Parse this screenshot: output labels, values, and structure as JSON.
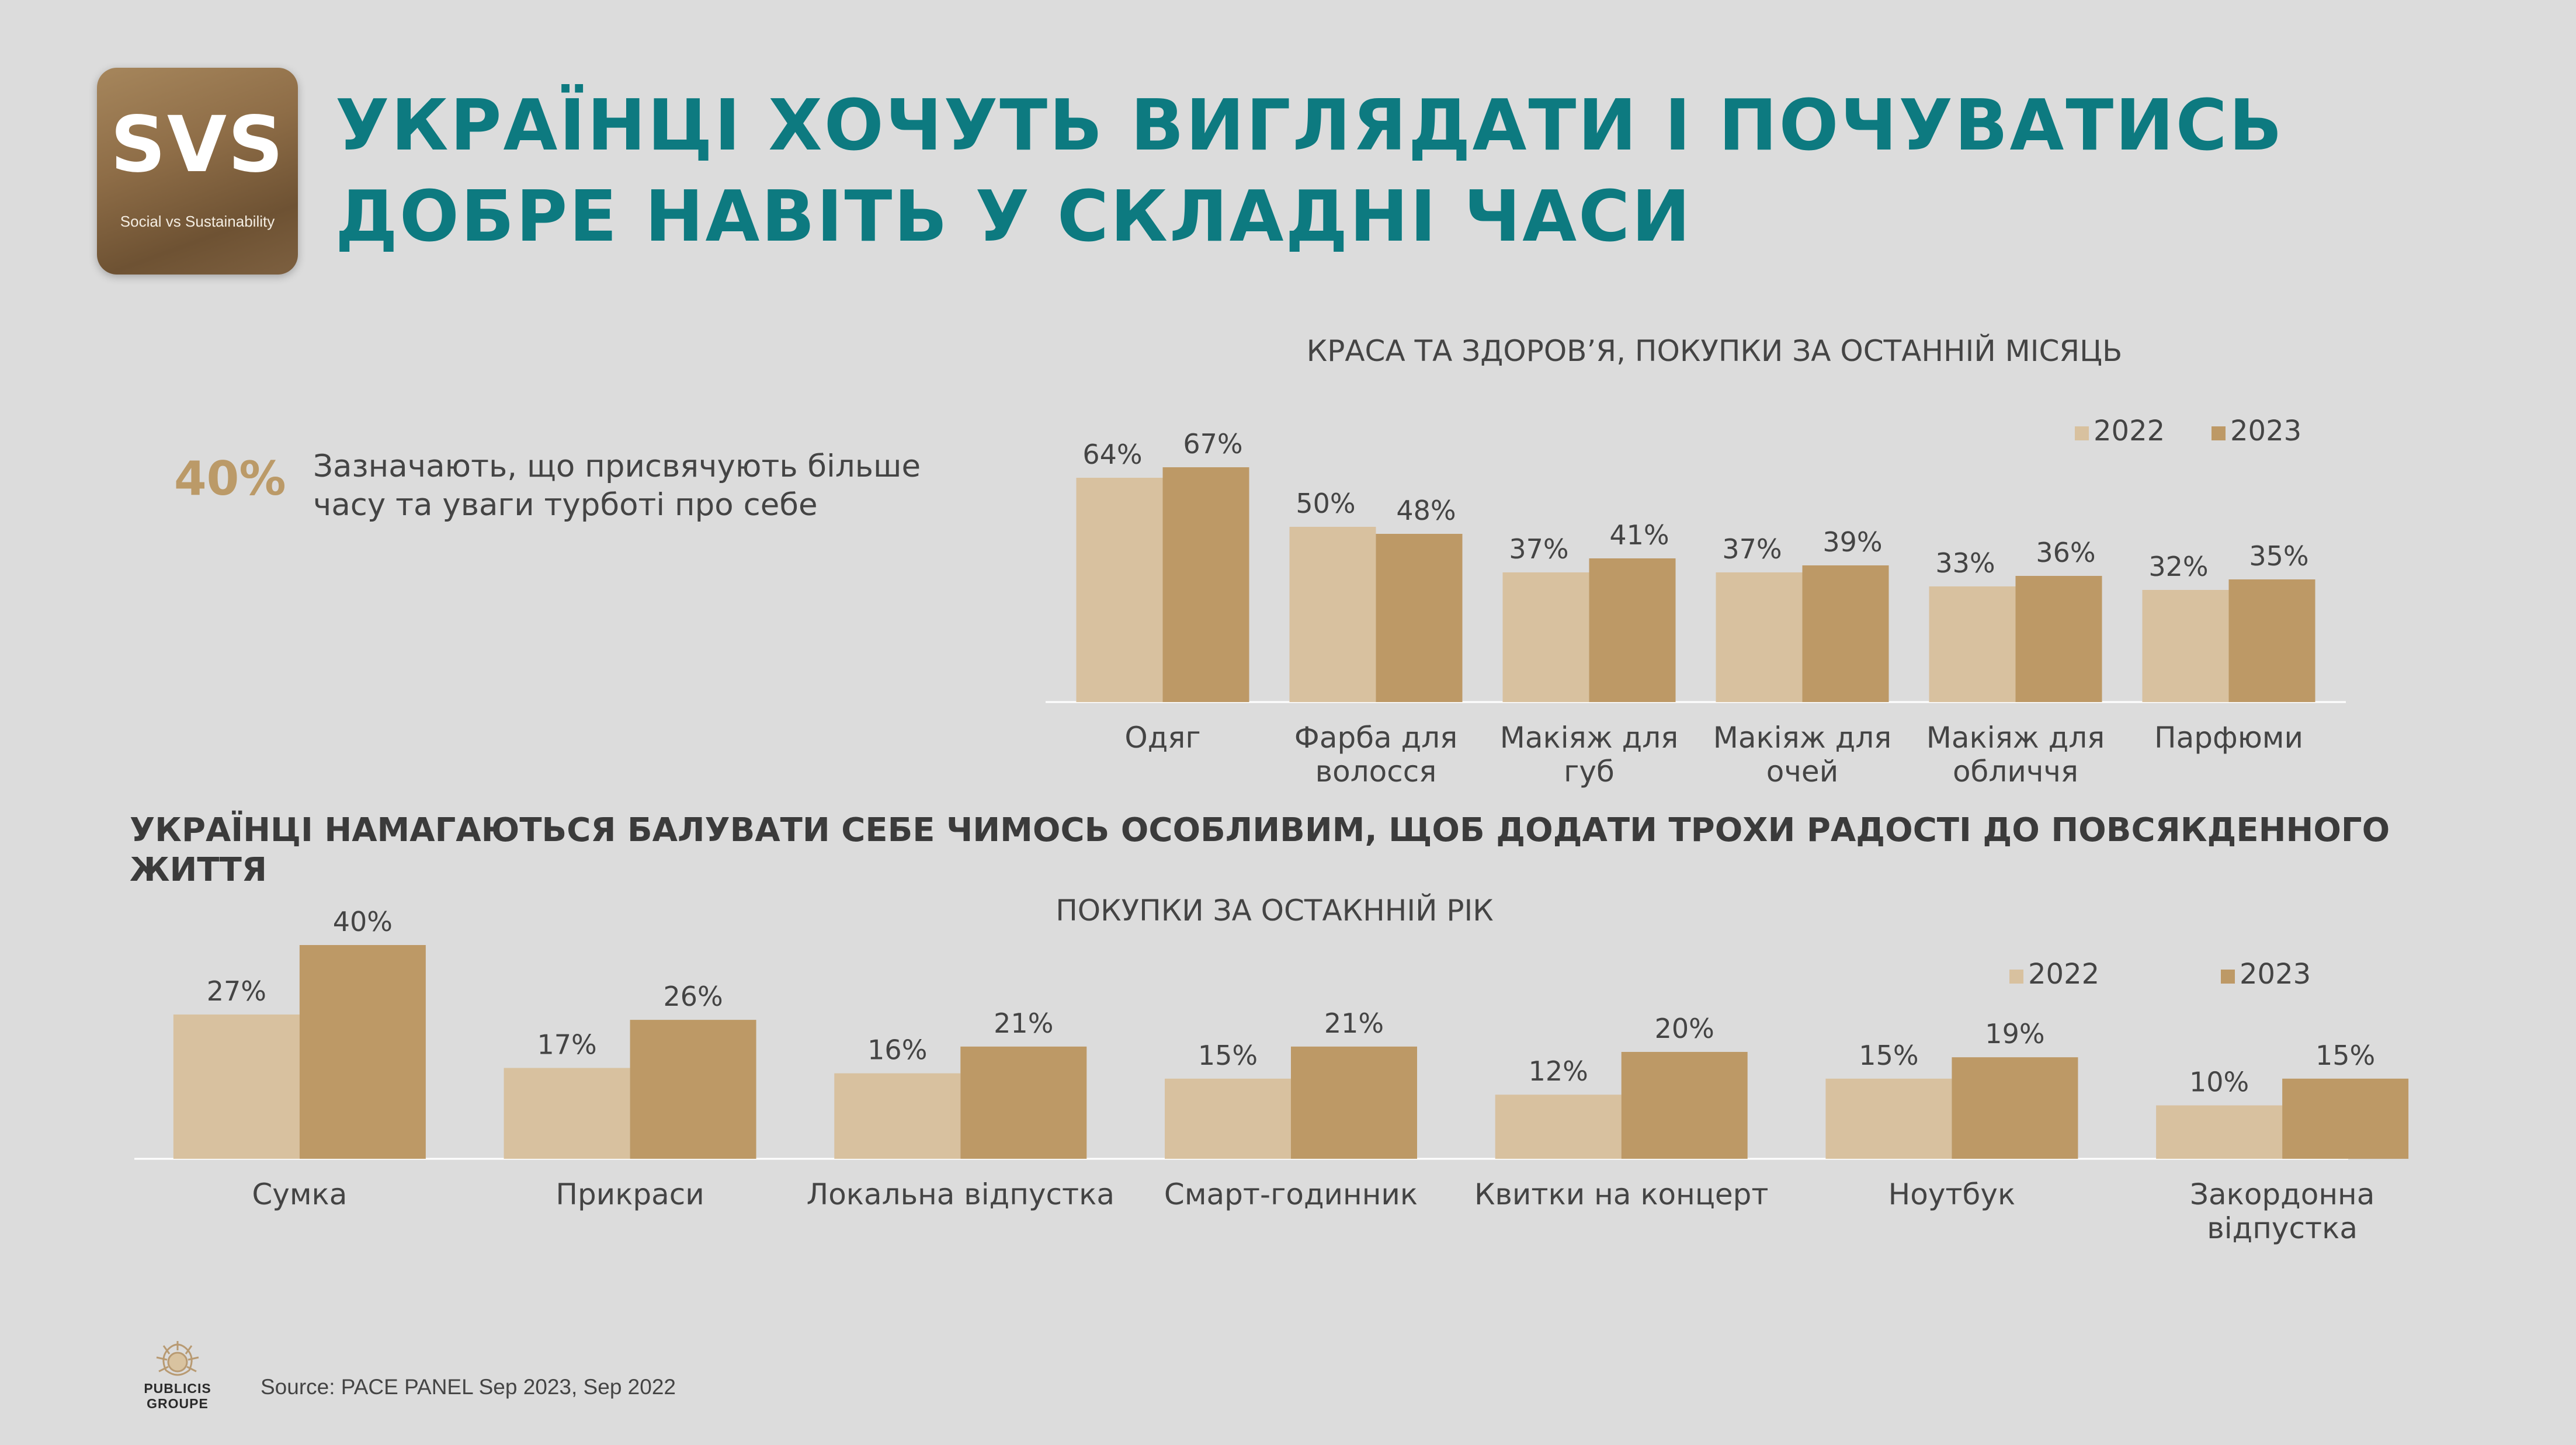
{
  "logo": {
    "mark": "SVS",
    "subtitle": "Social vs Sustainability",
    "colors": [
      "#a6865c",
      "#6e5233"
    ]
  },
  "title": {
    "line1": "УКРАЇНЦІ ХОЧУТЬ ВИГЛЯДАТИ І ПОЧУВАТИСЬ",
    "line2": "ДОБРЕ НАВІТЬ У СКЛАДНІ ЧАСИ",
    "color": "#0d7a80"
  },
  "stat": {
    "value": "40%",
    "text": "Зазначають, що присвячують більше часу та уваги турботі про себе"
  },
  "section_heading": "УКРАЇНЦІ НАМАГАЮТЬСЯ БАЛУВАТИ СЕБЕ ЧИМОСЬ ОСОБЛИВИМ, ЩОБ ДОДАТИ ТРОХИ РАДОСТІ ДО ПОВСЯКДЕННОГО ЖИТТЯ",
  "chart_data": [
    {
      "type": "bar",
      "title": "КРАСА ТА ЗДОРОВ’Я, ПОКУПКИ ЗА ОСТАННІЙ МІСЯЦЬ",
      "categories": [
        [
          "Одяг"
        ],
        [
          "Фарба для",
          "волосся"
        ],
        [
          "Макіяж для",
          "губ"
        ],
        [
          "Макіяж для",
          "очей"
        ],
        [
          "Макіяж для",
          "обличчя"
        ],
        [
          "Парфюми"
        ]
      ],
      "series": [
        {
          "name": "2022",
          "color": "#d8c19f",
          "values": [
            64,
            50,
            37,
            37,
            33,
            32
          ]
        },
        {
          "name": "2023",
          "color": "#bd9966",
          "values": [
            67,
            48,
            41,
            39,
            36,
            35
          ]
        }
      ],
      "unit": "%",
      "legend": "top-right",
      "grid": false
    },
    {
      "type": "bar",
      "title": "ПОКУПКИ ЗА ОСТАКННІЙ РІК",
      "categories": [
        [
          "Сумка"
        ],
        [
          "Прикраси"
        ],
        [
          "Локальна відпустка"
        ],
        [
          "Смарт-годинник"
        ],
        [
          "Квитки на концерт"
        ],
        [
          "Ноутбук"
        ],
        [
          "Закордонна",
          "відпустка"
        ]
      ],
      "series": [
        {
          "name": "2022",
          "color": "#d8c19f",
          "values": [
            27,
            17,
            16,
            15,
            12,
            15,
            10
          ]
        },
        {
          "name": "2023",
          "color": "#bd9966",
          "values": [
            40,
            26,
            21,
            21,
            20,
            19,
            15
          ]
        }
      ],
      "unit": "%",
      "legend": "top-right",
      "grid": false
    }
  ],
  "footer": {
    "publicis_line1": "PUBLICIS",
    "publicis_line2": "GROUPE",
    "source": "Source: PACE PANEL Sep 2023, Sep 2022"
  }
}
